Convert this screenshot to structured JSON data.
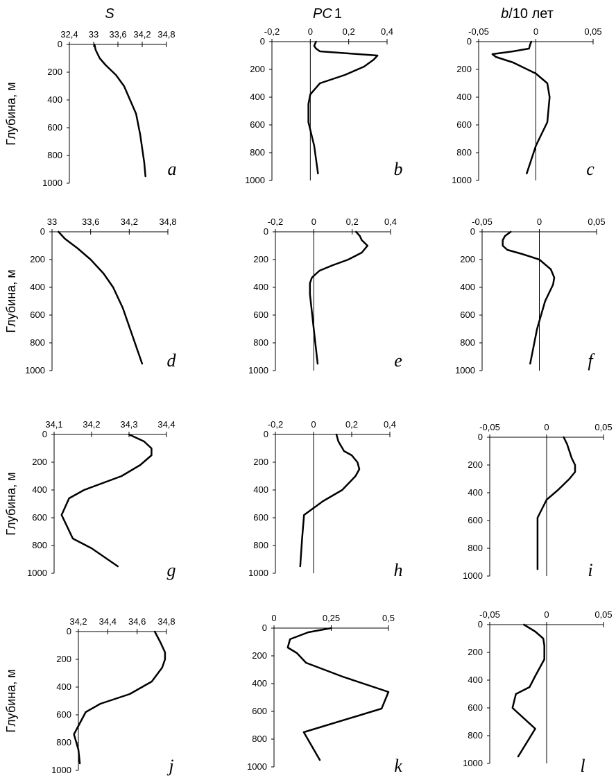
{
  "column_titles": {
    "s": "S",
    "pc_italic": "PC",
    "pc_num": "1",
    "b_italic": "b",
    "b_rest": "/10 лет"
  },
  "ylabel": "Глубина, м",
  "chart_data": [
    {
      "id": "a",
      "panel_label": "a",
      "type": "line",
      "xticks": [
        32.4,
        33,
        33.6,
        34.2,
        34.8
      ],
      "xtick_labels": [
        "32,4",
        "33",
        "33,6",
        "34,2",
        "34,8"
      ],
      "yticks": [
        0,
        200,
        400,
        600,
        800,
        1000
      ],
      "ylim": [
        1000,
        0
      ],
      "zero_line": false,
      "series": [
        {
          "x": [
            33.02,
            33.05,
            33.15,
            33.3,
            33.55,
            33.75,
            33.9,
            34.05,
            34.15,
            34.25,
            34.28
          ],
          "y": [
            0,
            40,
            100,
            150,
            220,
            300,
            400,
            500,
            650,
            850,
            950
          ]
        }
      ]
    },
    {
      "id": "b",
      "panel_label": "b",
      "type": "line",
      "xticks": [
        -0.2,
        0,
        0.2,
        0.4
      ],
      "xtick_labels": [
        "-0,2",
        "0",
        "0,2",
        "0,4"
      ],
      "yticks": [
        0,
        200,
        400,
        600,
        800,
        1000
      ],
      "ylim": [
        1000,
        0
      ],
      "zero_line": true,
      "series": [
        {
          "x": [
            0.03,
            0.02,
            0.03,
            0.05,
            0.2,
            0.35,
            0.33,
            0.28,
            0.18,
            0.05,
            0.0,
            -0.01,
            -0.01,
            0.02,
            0.04
          ],
          "y": [
            0,
            30,
            50,
            70,
            85,
            100,
            130,
            180,
            240,
            300,
            380,
            450,
            580,
            750,
            950
          ]
        }
      ]
    },
    {
      "id": "c",
      "panel_label": "c",
      "type": "line",
      "xticks": [
        -0.05,
        0,
        0.05
      ],
      "xtick_labels": [
        "-0,05",
        "0",
        "0,05"
      ],
      "yticks": [
        0,
        200,
        400,
        600,
        800,
        1000
      ],
      "ylim": [
        1000,
        0
      ],
      "zero_line": true,
      "series": [
        {
          "x": [
            -0.004,
            -0.005,
            -0.006,
            -0.02,
            -0.038,
            -0.035,
            -0.02,
            0.0,
            0.01,
            0.012,
            0.01,
            0.0,
            -0.008
          ],
          "y": [
            0,
            20,
            50,
            70,
            90,
            110,
            150,
            230,
            300,
            400,
            580,
            750,
            950
          ]
        }
      ]
    },
    {
      "id": "d",
      "panel_label": "d",
      "type": "line",
      "xticks": [
        33,
        33.6,
        34.2,
        34.8
      ],
      "xtick_labels": [
        "33",
        "33,6",
        "34,2",
        "34,8"
      ],
      "yticks": [
        0,
        200,
        400,
        600,
        800,
        1000
      ],
      "ylim": [
        1000,
        0
      ],
      "zero_line": false,
      "series": [
        {
          "x": [
            33.1,
            33.2,
            33.4,
            33.6,
            33.8,
            33.95,
            34.1,
            34.25,
            34.4
          ],
          "y": [
            0,
            50,
            120,
            200,
            300,
            400,
            550,
            750,
            950
          ]
        }
      ]
    },
    {
      "id": "e",
      "panel_label": "e",
      "type": "line",
      "xticks": [
        -0.2,
        0,
        0.2,
        0.4
      ],
      "xtick_labels": [
        "-0,2",
        "0",
        "0,2",
        "0,4"
      ],
      "yticks": [
        0,
        200,
        400,
        600,
        800,
        1000
      ],
      "ylim": [
        1000,
        0
      ],
      "zero_line": true,
      "series": [
        {
          "x": [
            0.22,
            0.24,
            0.25,
            0.28,
            0.25,
            0.18,
            0.1,
            0.03,
            -0.01,
            -0.02,
            -0.02,
            0.0,
            0.02
          ],
          "y": [
            0,
            30,
            60,
            100,
            150,
            200,
            240,
            280,
            330,
            370,
            450,
            700,
            950
          ]
        }
      ]
    },
    {
      "id": "f",
      "panel_label": "f",
      "type": "line",
      "xticks": [
        -0.05,
        0,
        0.05
      ],
      "xtick_labels": [
        "-0,05",
        "0",
        "0,05"
      ],
      "yticks": [
        0,
        200,
        400,
        600,
        800,
        1000
      ],
      "ylim": [
        1000,
        0
      ],
      "zero_line": true,
      "series": [
        {
          "x": [
            -0.025,
            -0.03,
            -0.032,
            -0.032,
            -0.028,
            -0.015,
            0.0,
            0.01,
            0.013,
            0.012,
            0.005,
            -0.002,
            -0.008
          ],
          "y": [
            0,
            30,
            60,
            100,
            130,
            160,
            200,
            270,
            330,
            380,
            500,
            700,
            950
          ]
        }
      ]
    },
    {
      "id": "g",
      "panel_label": "g",
      "type": "line",
      "xticks": [
        34.1,
        34.2,
        34.3,
        34.4
      ],
      "xtick_labels": [
        "34,1",
        "34,2",
        "34,3",
        "34,4"
      ],
      "yticks": [
        0,
        200,
        400,
        600,
        800,
        1000
      ],
      "ylim": [
        1000,
        0
      ],
      "zero_line": false,
      "series": [
        {
          "x": [
            34.3,
            34.34,
            34.36,
            34.36,
            34.33,
            34.28,
            34.18,
            34.14,
            34.12,
            34.15,
            34.2,
            34.27
          ],
          "y": [
            0,
            50,
            100,
            150,
            220,
            300,
            400,
            460,
            580,
            750,
            820,
            950
          ]
        }
      ]
    },
    {
      "id": "h",
      "panel_label": "h",
      "type": "line",
      "xticks": [
        -0.2,
        0,
        0.2,
        0.4
      ],
      "xtick_labels": [
        "-0,2",
        "0",
        "0,2",
        "0,4"
      ],
      "yticks": [
        0,
        200,
        400,
        600,
        800,
        1000
      ],
      "ylim": [
        1000,
        0
      ],
      "zero_line": true,
      "series": [
        {
          "x": [
            0.12,
            0.13,
            0.16,
            0.2,
            0.23,
            0.24,
            0.22,
            0.15,
            0.05,
            -0.05,
            -0.06,
            -0.07
          ],
          "y": [
            0,
            50,
            120,
            150,
            200,
            250,
            300,
            400,
            480,
            580,
            750,
            950
          ]
        }
      ]
    },
    {
      "id": "i",
      "panel_label": "i",
      "type": "line",
      "xticks": [
        -0.05,
        0,
        0.05
      ],
      "xtick_labels": [
        "-0,05",
        "0",
        "0,05"
      ],
      "yticks": [
        0,
        200,
        400,
        600,
        800,
        1000
      ],
      "ylim": [
        1000,
        0
      ],
      "zero_line": true,
      "series": [
        {
          "x": [
            0.015,
            0.018,
            0.02,
            0.022,
            0.025,
            0.025,
            0.02,
            0.01,
            0.0,
            -0.008,
            -0.008,
            -0.008
          ],
          "y": [
            0,
            50,
            100,
            150,
            200,
            250,
            300,
            380,
            450,
            580,
            750,
            950
          ]
        }
      ]
    },
    {
      "id": "j",
      "panel_label": "j",
      "type": "line",
      "xticks": [
        34.2,
        34.4,
        34.6,
        34.8
      ],
      "xtick_labels": [
        "34,2",
        "34,4",
        "34,6",
        "34,8"
      ],
      "yticks": [
        0,
        200,
        400,
        600,
        800,
        1000
      ],
      "ylim": [
        1000,
        0
      ],
      "zero_line": false,
      "series": [
        {
          "x": [
            34.72,
            34.76,
            34.79,
            34.79,
            34.77,
            34.7,
            34.55,
            34.35,
            34.25,
            34.17,
            34.2,
            34.21
          ],
          "y": [
            0,
            80,
            150,
            200,
            260,
            360,
            450,
            520,
            580,
            740,
            850,
            950
          ]
        }
      ]
    },
    {
      "id": "k",
      "panel_label": "k",
      "type": "line",
      "xticks": [
        0,
        0.25,
        0.5
      ],
      "xtick_labels": [
        "0",
        "0,25",
        "0,5"
      ],
      "yticks": [
        0,
        200,
        400,
        600,
        800,
        1000
      ],
      "ylim": [
        1000,
        0
      ],
      "zero_line": false,
      "series": [
        {
          "x": [
            0.25,
            0.15,
            0.07,
            0.06,
            0.1,
            0.14,
            0.3,
            0.5,
            0.47,
            0.13,
            0.2
          ],
          "y": [
            0,
            30,
            80,
            140,
            180,
            250,
            350,
            460,
            580,
            750,
            950
          ]
        }
      ]
    },
    {
      "id": "l",
      "panel_label": "l",
      "type": "line",
      "xticks": [
        -0.05,
        0,
        0.05
      ],
      "xtick_labels": [
        "-0,05",
        "0",
        "0,05"
      ],
      "yticks": [
        0,
        200,
        400,
        600,
        800,
        1000
      ],
      "ylim": [
        1000,
        0
      ],
      "zero_line": true,
      "series": [
        {
          "x": [
            -0.02,
            -0.01,
            -0.003,
            -0.002,
            -0.002,
            -0.01,
            -0.015,
            -0.027,
            -0.03,
            -0.01,
            -0.025
          ],
          "y": [
            0,
            50,
            100,
            150,
            250,
            370,
            450,
            500,
            600,
            750,
            950
          ]
        }
      ]
    }
  ]
}
